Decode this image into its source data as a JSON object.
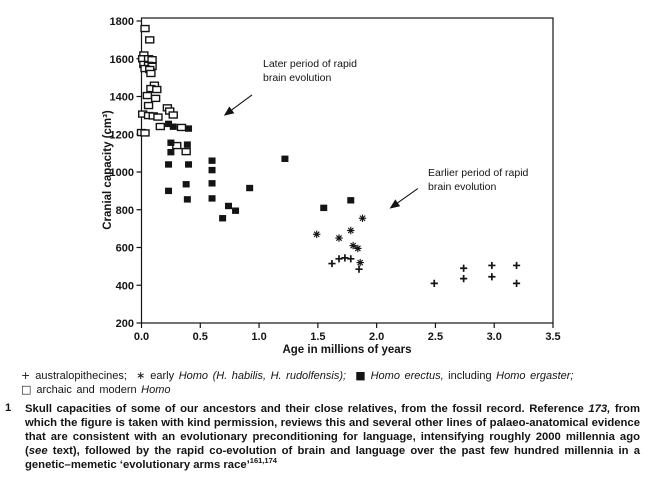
{
  "figure": {
    "background": "#ffffff",
    "ink": "#141414"
  },
  "chart_data": {
    "type": "scatter",
    "title": "",
    "xlabel": "Age in millions of years",
    "ylabel": "Cranial capacity (cm³)",
    "xlim": [
      0,
      3.5
    ],
    "ylim": [
      200,
      1800
    ],
    "x_ticks": [
      0.0,
      0.5,
      1.0,
      1.5,
      2.0,
      2.5,
      3.0,
      3.5
    ],
    "y_ticks": [
      200,
      400,
      600,
      800,
      1000,
      1200,
      1400,
      1600,
      1800
    ],
    "grid": false,
    "frame": true,
    "legend_position": "below",
    "series": [
      {
        "name": "australopithecines",
        "marker": "plus",
        "points": [
          [
            1.62,
            515
          ],
          [
            1.68,
            540
          ],
          [
            1.73,
            545
          ],
          [
            1.78,
            540
          ],
          [
            1.85,
            485
          ],
          [
            2.49,
            410
          ],
          [
            2.74,
            490
          ],
          [
            2.74,
            435
          ],
          [
            2.98,
            505
          ],
          [
            2.98,
            445
          ],
          [
            3.19,
            505
          ],
          [
            3.19,
            410
          ]
        ]
      },
      {
        "name": "early Homo (H. habilis, H. rudolfensis)",
        "marker": "asterisk",
        "points": [
          [
            1.49,
            670
          ],
          [
            1.68,
            650
          ],
          [
            1.78,
            690
          ],
          [
            1.8,
            610
          ],
          [
            1.84,
            595
          ],
          [
            1.88,
            755
          ],
          [
            1.86,
            520
          ]
        ]
      },
      {
        "name": "Homo erectus, including Homo ergaster",
        "marker": "filled-square",
        "points": [
          [
            0.23,
            1255
          ],
          [
            0.27,
            1240
          ],
          [
            0.4,
            1230
          ],
          [
            0.25,
            1155
          ],
          [
            0.39,
            1145
          ],
          [
            0.25,
            1105
          ],
          [
            0.23,
            1040
          ],
          [
            0.4,
            1040
          ],
          [
            0.6,
            1060
          ],
          [
            0.6,
            1010
          ],
          [
            0.38,
            935
          ],
          [
            0.6,
            940
          ],
          [
            0.23,
            900
          ],
          [
            0.39,
            855
          ],
          [
            0.6,
            860
          ],
          [
            0.69,
            755
          ],
          [
            0.74,
            820
          ],
          [
            0.8,
            795
          ],
          [
            0.92,
            915
          ],
          [
            1.22,
            1070
          ],
          [
            1.55,
            810
          ],
          [
            1.78,
            850
          ]
        ]
      },
      {
        "name": "archaic and modern Homo",
        "marker": "open-square",
        "points": [
          [
            0.03,
            1760
          ],
          [
            0.07,
            1700
          ],
          [
            0.02,
            1620
          ],
          [
            0.01,
            1600
          ],
          [
            0.06,
            1600
          ],
          [
            0.09,
            1595
          ],
          [
            0.02,
            1570
          ],
          [
            0.06,
            1565
          ],
          [
            0.09,
            1560
          ],
          [
            0.03,
            1548
          ],
          [
            0.07,
            1543
          ],
          [
            0.08,
            1522
          ],
          [
            0.11,
            1460
          ],
          [
            0.08,
            1442
          ],
          [
            0.13,
            1437
          ],
          [
            0.05,
            1405
          ],
          [
            0.12,
            1390
          ],
          [
            0.06,
            1352
          ],
          [
            0.22,
            1340
          ],
          [
            0.24,
            1323
          ],
          [
            0.01,
            1307
          ],
          [
            0.06,
            1299
          ],
          [
            0.1,
            1297
          ],
          [
            0.14,
            1291
          ],
          [
            0.27,
            1302
          ],
          [
            0.16,
            1241
          ],
          [
            0.34,
            1236
          ],
          [
            0.0,
            1209
          ],
          [
            0.03,
            1207
          ],
          [
            0.3,
            1140
          ],
          [
            0.38,
            1108
          ]
        ]
      }
    ],
    "annotations": [
      {
        "lines": [
          "Later period of rapid",
          "brain evolution"
        ],
        "text_x": 1.03,
        "text_y": 1556,
        "arrow_from": [
          0.94,
          1408
        ],
        "arrow_to": [
          0.7,
          1298
        ]
      },
      {
        "lines": [
          "Earlier period of rapid",
          "brain evolution"
        ],
        "text_x": 2.44,
        "text_y": 982,
        "arrow_from": [
          2.35,
          912
        ],
        "arrow_to": [
          2.11,
          806
        ]
      }
    ]
  },
  "legend": {
    "lines": [
      [
        {
          "t": "+ ",
          "sym": "plus"
        },
        {
          "t": "australopithecines;  "
        },
        {
          "t": "∗ ",
          "sym": "asterisk"
        },
        {
          "t": "early "
        },
        {
          "t": "Homo (H. habilis, H. rudolfensis);",
          "i": true
        },
        {
          "t": "  "
        },
        {
          "t": "■ ",
          "sym": "filled-square"
        },
        {
          "t": "Homo erectus,",
          "i": true
        },
        {
          "t": " including "
        },
        {
          "t": "Homo ergaster;",
          "i": true
        }
      ],
      [
        {
          "t": "□ ",
          "sym": "open-square"
        },
        {
          "t": "archaic and modern "
        },
        {
          "t": "Homo",
          "i": true
        }
      ]
    ]
  },
  "caption": {
    "number": "1",
    "segments": [
      {
        "t": "Skull capacities of some of our ancestors and their close relatives, from the fossil record. Reference "
      },
      {
        "t": "173,",
        "i": true
      },
      {
        "t": " from which the figure is taken with kind permission, reviews this and several other lines of palaeo-anatomical evidence that are consistent with an evolutionary preconditioning for language, intensifying roughly 2000 millennia ago ("
      },
      {
        "t": "see",
        "i": true
      },
      {
        "t": " text), followed by the rapid co-evolution of brain and language over the past few hundred millennia in a genetic–memetic ‘evolutionary arms race’"
      },
      {
        "t": "161,174",
        "sup": true
      }
    ]
  }
}
